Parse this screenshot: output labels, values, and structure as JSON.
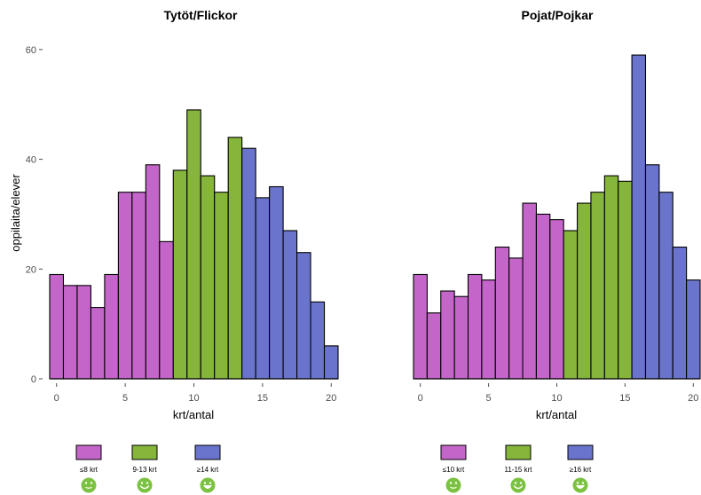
{
  "chart_data": {
    "type": "bar",
    "ylabel": "oppilaita/elever",
    "ylim": [
      0,
      62
    ],
    "yticks": [
      0,
      20,
      40,
      60
    ],
    "xticks": [
      0,
      5,
      10,
      15,
      20
    ],
    "xlim": [
      -0.5,
      20.5
    ],
    "grid": false,
    "legend_placement": "bottom",
    "smiley_color": "#7cc242",
    "panels": [
      {
        "title": "Tytöt/Flickor",
        "xlabel": "krt/antal",
        "x": [
          0,
          1,
          2,
          3,
          4,
          5,
          6,
          7,
          8,
          9,
          10,
          11,
          12,
          13,
          14,
          15,
          16,
          17,
          18,
          19,
          20
        ],
        "values": [
          19,
          17,
          17,
          13,
          19,
          34,
          34,
          39,
          25,
          38,
          49,
          37,
          34,
          44,
          42,
          33,
          35,
          27,
          23,
          14,
          6
        ],
        "groups": [
          {
            "label": "≤8  krt",
            "from": 0,
            "to": 8,
            "color": "#c466c9",
            "smiley": "slight-smile-icon"
          },
          {
            "label": "9-13  krt",
            "from": 9,
            "to": 13,
            "color": "#86b53c",
            "smiley": "smile-icon"
          },
          {
            "label": "≥14  krt",
            "from": 14,
            "to": 20,
            "color": "#6a74cc",
            "smiley": "big-grin-icon"
          }
        ]
      },
      {
        "title": "Pojat/Pojkar",
        "xlabel": "krt/antal",
        "x": [
          0,
          1,
          2,
          3,
          4,
          5,
          6,
          7,
          8,
          9,
          10,
          11,
          12,
          13,
          14,
          15,
          16,
          17,
          18,
          19,
          20
        ],
        "values": [
          19,
          12,
          16,
          15,
          19,
          18,
          24,
          22,
          32,
          30,
          29,
          27,
          32,
          34,
          37,
          36,
          59,
          39,
          34,
          24,
          18
        ],
        "groups": [
          {
            "label": "≤10  krt",
            "from": 0,
            "to": 10,
            "color": "#c466c9",
            "smiley": "slight-smile-icon"
          },
          {
            "label": "11-15  krt",
            "from": 11,
            "to": 15,
            "color": "#86b53c",
            "smiley": "smile-icon"
          },
          {
            "label": "≥16  krt",
            "from": 16,
            "to": 20,
            "color": "#6a74cc",
            "smiley": "big-grin-icon"
          }
        ]
      }
    ]
  }
}
